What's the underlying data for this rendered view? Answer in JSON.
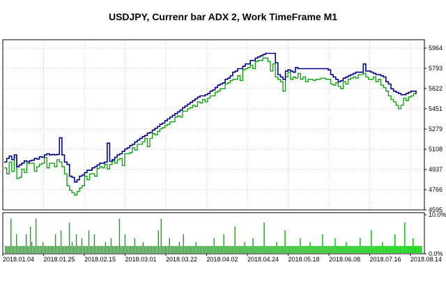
{
  "title": "USDJPY, Currenr bar ADX 2, Work TimeFrame M1",
  "colors": {
    "balance": "#00008B",
    "equity": "#00A000",
    "volume": "#00B400",
    "grid": "#C8C8C8",
    "frame": "#000000"
  },
  "chart_data": [
    {
      "type": "line",
      "title": "",
      "series": [
        {
          "values": [
            5000,
            5030,
            5050,
            5020,
            5060,
            4960,
            4975,
            4990,
            5010,
            5000,
            5010,
            5015,
            5030,
            5025,
            5045,
            5040,
            5060,
            5070,
            5060,
            5065,
            5060,
            5065,
            5205,
            5060,
            5000,
            4980,
            4880,
            4870,
            4830,
            4850,
            4880,
            4890,
            4910,
            4930,
            4930,
            4950,
            4960,
            4975,
            4990,
            4990,
            5000,
            5160,
            5005,
            5020,
            5040,
            5060,
            5070,
            5090,
            5110,
            5120,
            5140,
            5150,
            5170,
            5185,
            5200,
            5215,
            5225,
            5245,
            5250,
            5270,
            5285,
            5300,
            5320,
            5330,
            5350,
            5365,
            5380,
            5395,
            5410,
            5425,
            5440,
            5460,
            5475,
            5490,
            5505,
            5520,
            5535,
            5550,
            5560,
            5560,
            5570,
            5580,
            5600,
            5610,
            5630,
            5650,
            5660,
            5670,
            5700,
            5710,
            5730,
            5760,
            5770,
            5790,
            5790,
            5810,
            5830,
            5830,
            5860,
            5860,
            5880,
            5890,
            5900,
            5910,
            5920,
            5920,
            5920,
            5920,
            5840,
            5740,
            5720,
            5700,
            5770,
            5780,
            5770,
            5760,
            5800,
            5790,
            5790,
            5790,
            5790,
            5790,
            5790,
            5790,
            5790,
            5790,
            5790,
            5790,
            5790,
            5780,
            5740,
            5720,
            5700,
            5680,
            5690,
            5710,
            5720,
            5730,
            5740,
            5750,
            5760,
            5760,
            5760,
            5830,
            5770,
            5770,
            5760,
            5750,
            5740,
            5740,
            5730,
            5720,
            5680,
            5660,
            5620,
            5600,
            5590,
            5580,
            5570,
            5570,
            5580,
            5590,
            5600,
            5600,
            5580
          ]
        },
        {
          "values": [
            4950,
            4900,
            5000,
            4920,
            5040,
            4860,
            4870,
            4940,
            4910,
            4985,
            4990,
            4990,
            4920,
            4960,
            4980,
            4990,
            5040,
            4950,
            4990,
            4990,
            4960,
            5020,
            5000,
            4960,
            4900,
            4800,
            4760,
            4740,
            4720,
            4750,
            4780,
            4800,
            4880,
            4850,
            4900,
            4900,
            4880,
            4945,
            4960,
            4950,
            4980,
            4940,
            4980,
            5010,
            4990,
            5020,
            5030,
            4970,
            5070,
            5070,
            5080,
            5120,
            5100,
            5150,
            5150,
            5170,
            5200,
            5130,
            5200,
            5240,
            5230,
            5260,
            5280,
            5290,
            5310,
            5320,
            5340,
            5340,
            5380,
            5390,
            5380,
            5430,
            5430,
            5450,
            5460,
            5480,
            5470,
            5510,
            5500,
            5530,
            5510,
            5540,
            5560,
            5560,
            5590,
            5600,
            5620,
            5620,
            5660,
            5670,
            5690,
            5700,
            5700,
            5730,
            5690,
            5780,
            5790,
            5800,
            5820,
            5790,
            5850,
            5860,
            5860,
            5880,
            5880,
            5850,
            5770,
            5830,
            5720,
            5700,
            5680,
            5600,
            5720,
            5760,
            5700,
            5720,
            5710,
            5750,
            5700,
            5720,
            5680,
            5700,
            5700,
            5690,
            5700,
            5700,
            5710,
            5710,
            5700,
            5700,
            5660,
            5650,
            5670,
            5640,
            5620,
            5680,
            5660,
            5700,
            5710,
            5720,
            5710,
            5740,
            5740,
            5750,
            5720,
            5700,
            5700,
            5720,
            5680,
            5700,
            5650,
            5630,
            5600,
            5560,
            5530,
            5510,
            5480,
            5450,
            5480,
            5540,
            5520,
            5550,
            5560,
            5580,
            5570
          ]
        }
      ],
      "x_ticks": [
        "2018.01.04",
        "2018.01.25",
        "2018.02.15",
        "2018.03.01",
        "2018.03.22",
        "2018.04.02",
        "2018.04.24",
        "2018.05.18",
        "2018.06.08",
        "2018.07.16",
        "2018.08.14"
      ],
      "y_ticks": [
        "5964",
        "5793",
        "5622",
        "5451",
        "5279",
        "5108",
        "4937",
        "4766",
        "4595"
      ],
      "ylim": [
        4595,
        6035
      ]
    },
    {
      "type": "bar",
      "title": "",
      "y_ticks": [
        "10.0%",
        "0.0%"
      ],
      "ylim": [
        0,
        10
      ],
      "values": [
        2,
        2,
        2,
        2,
        2,
        2,
        2,
        2,
        2,
        2,
        2,
        2,
        2,
        2,
        2,
        2,
        2,
        2,
        2,
        2,
        2,
        2,
        2,
        2,
        2,
        2,
        2,
        2,
        2,
        2,
        2,
        2,
        2,
        2,
        2,
        2,
        2,
        2,
        2,
        2,
        2,
        2,
        2,
        2,
        2,
        2,
        2,
        2,
        2,
        2,
        2,
        2,
        2,
        2,
        2,
        2,
        2,
        2,
        2,
        2,
        2,
        2,
        2,
        2,
        2,
        2,
        2,
        2,
        2,
        2,
        2,
        2,
        2,
        2,
        2,
        2,
        2,
        2,
        2,
        2,
        2,
        2,
        2,
        2,
        2,
        2,
        2,
        2,
        2,
        2,
        2,
        2,
        2,
        2,
        2,
        2,
        2,
        2,
        2,
        2,
        2,
        2,
        2,
        2,
        2,
        2,
        2,
        2,
        2,
        2,
        2,
        2,
        2,
        2,
        2,
        2,
        2,
        2,
        2,
        2,
        2,
        2,
        2,
        2,
        2,
        2,
        2,
        2,
        2,
        2,
        2,
        2,
        2,
        2,
        2,
        2,
        2,
        2,
        2,
        2,
        2,
        2,
        2,
        2,
        2,
        2,
        2,
        2,
        2,
        2,
        2,
        2,
        2,
        2,
        2,
        2,
        2,
        2,
        2,
        2,
        2,
        2,
        2,
        2,
        2,
        2,
        2,
        2,
        2,
        2,
        2,
        2,
        2,
        2,
        2,
        2,
        2,
        2,
        2,
        2,
        2,
        2,
        2,
        2,
        2,
        2,
        2,
        2,
        2,
        2,
        2,
        2,
        2,
        2,
        2,
        2,
        2,
        2,
        2,
        2,
        2,
        2,
        2,
        2,
        2,
        2,
        2,
        2,
        2,
        2,
        2,
        2,
        2,
        2,
        2,
        2,
        2,
        2,
        2,
        2,
        2,
        2,
        2,
        2,
        2,
        2,
        2,
        2,
        2,
        2,
        2,
        2,
        2,
        2,
        2,
        2,
        2,
        2,
        2,
        2,
        2,
        2,
        2,
        2,
        2,
        2,
        2,
        2,
        2,
        2,
        2,
        2,
        2,
        2,
        2,
        2,
        2,
        2,
        2,
        2,
        2,
        2,
        2,
        2,
        2,
        2,
        2,
        2,
        2,
        2,
        2,
        2,
        2,
        2,
        2,
        2,
        2,
        2,
        2,
        2,
        2,
        2,
        2,
        2,
        2,
        2,
        2,
        2,
        2,
        2,
        2,
        2,
        2,
        2,
        2,
        2,
        2,
        2,
        2,
        2
      ],
      "spikes": [
        [
          4,
          9
        ],
        [
          8,
          5
        ],
        [
          15,
          5
        ],
        [
          18,
          7
        ],
        [
          19,
          3
        ],
        [
          22,
          9
        ],
        [
          27,
          3
        ],
        [
          36,
          5
        ],
        [
          40,
          6
        ],
        [
          46,
          8
        ],
        [
          48,
          3
        ],
        [
          51,
          5
        ],
        [
          55,
          4
        ],
        [
          60,
          6
        ],
        [
          64,
          5
        ],
        [
          72,
          3
        ],
        [
          76,
          4
        ],
        [
          82,
          9
        ],
        [
          86,
          5
        ],
        [
          93,
          4
        ],
        [
          99,
          3
        ],
        [
          110,
          6
        ],
        [
          112,
          9
        ],
        [
          118,
          4
        ],
        [
          125,
          3
        ],
        [
          128,
          5
        ],
        [
          137,
          3
        ],
        [
          150,
          4
        ],
        [
          157,
          5
        ],
        [
          165,
          7
        ],
        [
          172,
          3
        ],
        [
          178,
          4
        ],
        [
          186,
          8
        ],
        [
          195,
          3
        ],
        [
          201,
          6
        ],
        [
          212,
          4
        ],
        [
          219,
          3
        ],
        [
          228,
          5
        ],
        [
          237,
          4
        ],
        [
          245,
          3
        ],
        [
          255,
          4
        ],
        [
          263,
          6
        ],
        [
          271,
          3
        ],
        [
          280,
          5
        ],
        [
          287,
          8
        ],
        [
          293,
          4
        ],
        [
          300,
          6
        ],
        [
          305,
          5
        ]
      ]
    }
  ]
}
